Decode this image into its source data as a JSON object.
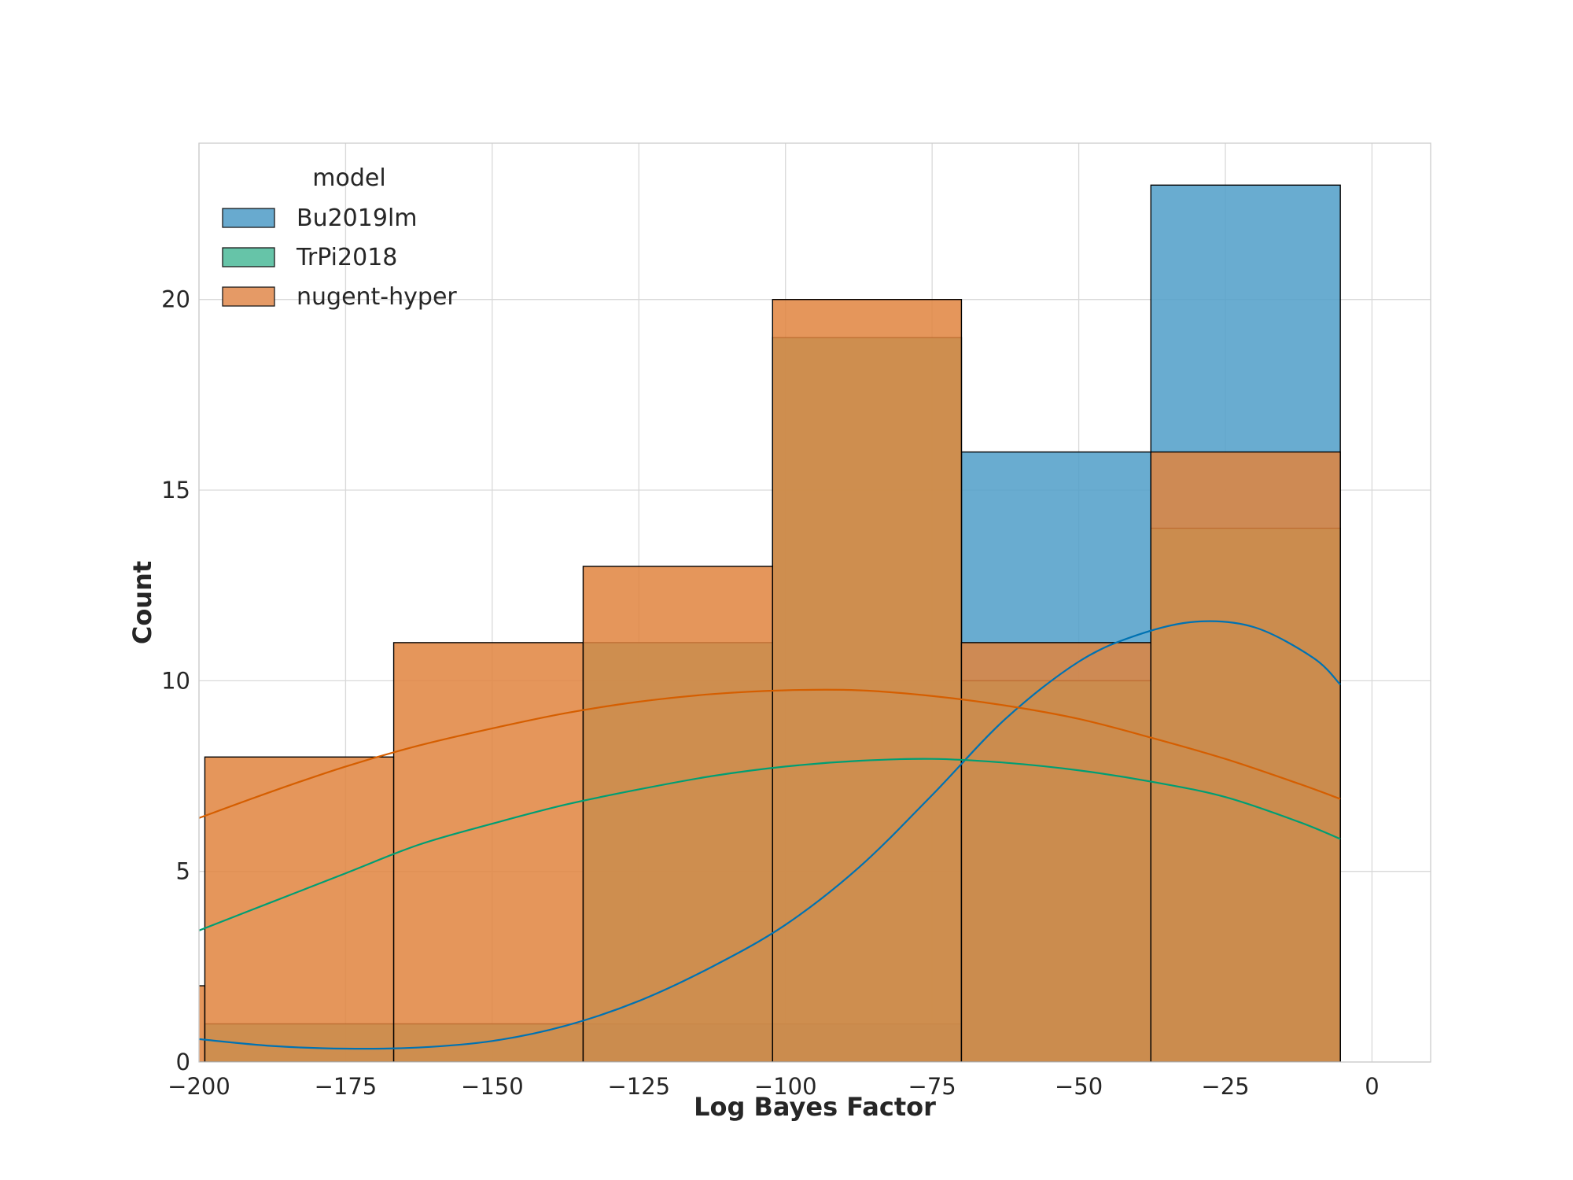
{
  "chart_data": {
    "type": "histogram",
    "xlabel": "Log Bayes Factor",
    "ylabel": "Count",
    "xlim": [
      -200,
      10
    ],
    "ylim": [
      0,
      24.1
    ],
    "xticks": [
      -200,
      -175,
      -150,
      -125,
      -100,
      -75,
      -50,
      -25,
      0
    ],
    "xtick_labels": [
      "−200",
      "−175",
      "−150",
      "−125",
      "−100",
      "−75",
      "−50",
      "−25",
      "0"
    ],
    "yticks": [
      0,
      5,
      10,
      15,
      20
    ],
    "ytick_labels": [
      "0",
      "5",
      "10",
      "15",
      "20"
    ],
    "grid": true,
    "legend": {
      "title": "model",
      "placement": "top-left"
    },
    "bin_edges": [
      -231.3,
      -199.0,
      -166.8,
      -134.5,
      -102.2,
      -70.0,
      -37.7,
      -5.4
    ],
    "series": [
      {
        "name": "Bu2019lm",
        "fill": "#4f9dc8",
        "line_color": "#0072b2",
        "counts": [
          0,
          0,
          0,
          1,
          1,
          16,
          23
        ],
        "kde_x": [
          -200,
          -187.5,
          -175,
          -162.5,
          -150,
          -137.5,
          -125,
          -112.5,
          -100,
          -87.5,
          -75,
          -62.5,
          -50,
          -40,
          -30,
          -20,
          -10,
          -5.4
        ],
        "kde_y": [
          0.6,
          0.42,
          0.35,
          0.38,
          0.55,
          0.95,
          1.6,
          2.5,
          3.6,
          5.1,
          7.0,
          9.0,
          10.5,
          11.2,
          11.55,
          11.4,
          10.6,
          9.9
        ]
      },
      {
        "name": "TrPi2018",
        "fill": "#4fbf9f",
        "line_color": "#009e73",
        "counts": [
          0,
          1,
          1,
          11,
          19,
          10,
          14
        ],
        "kde_x": [
          -200,
          -187.5,
          -175,
          -162.5,
          -150,
          -137.5,
          -125,
          -112.5,
          -100,
          -87.5,
          -75,
          -62.5,
          -50,
          -37.5,
          -25,
          -12.5,
          -5.4
        ],
        "kde_y": [
          3.45,
          4.2,
          4.95,
          5.7,
          6.25,
          6.75,
          7.15,
          7.5,
          7.75,
          7.9,
          7.95,
          7.85,
          7.65,
          7.35,
          6.95,
          6.3,
          5.85
        ]
      },
      {
        "name": "nugent-hyper",
        "fill": "#e0843e",
        "line_color": "#d55e00",
        "counts": [
          2,
          8,
          11,
          13,
          20,
          11,
          16
        ],
        "kde_x": [
          -200,
          -187.5,
          -175,
          -162.5,
          -150,
          -137.5,
          -125,
          -112.5,
          -100,
          -87.5,
          -75,
          -62.5,
          -50,
          -37.5,
          -25,
          -12.5,
          -5.4
        ],
        "kde_y": [
          6.4,
          7.1,
          7.75,
          8.3,
          8.75,
          9.15,
          9.45,
          9.65,
          9.75,
          9.75,
          9.6,
          9.35,
          9.0,
          8.5,
          7.95,
          7.3,
          6.9
        ]
      }
    ]
  }
}
